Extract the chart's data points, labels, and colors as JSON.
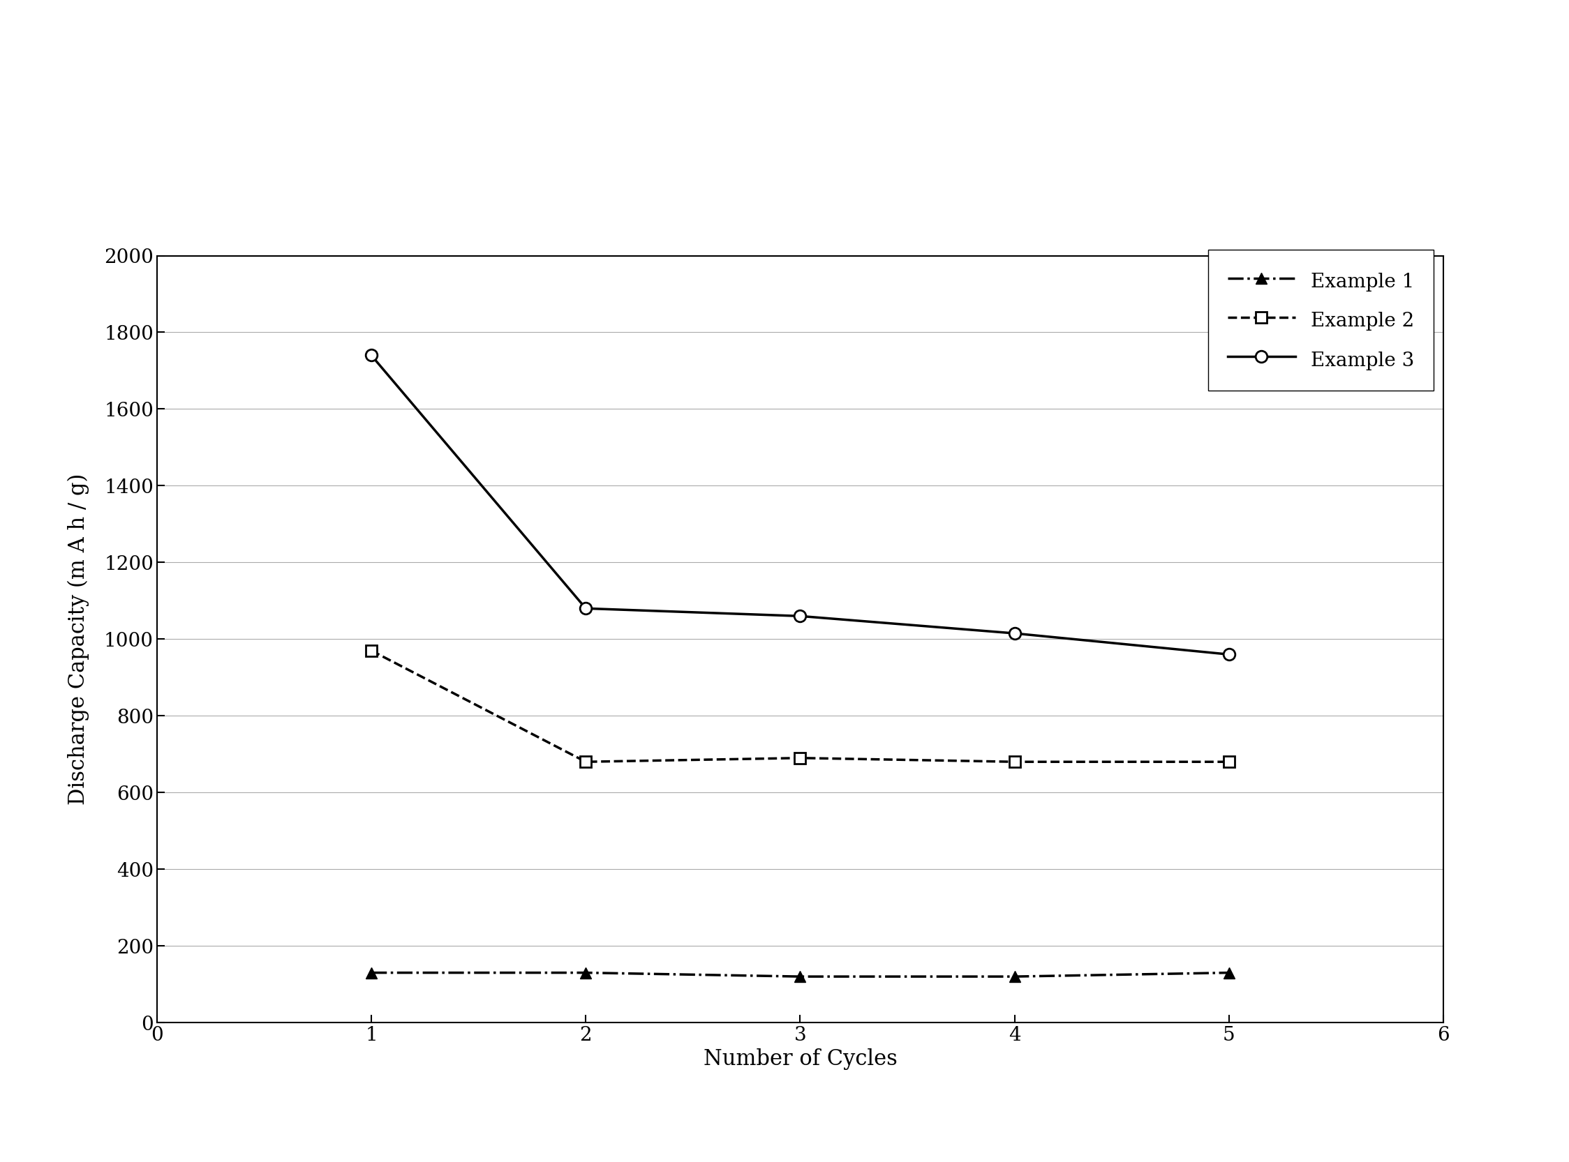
{
  "x": [
    1,
    2,
    3,
    4,
    5
  ],
  "example1": [
    130,
    130,
    120,
    120,
    130
  ],
  "example2": [
    970,
    680,
    690,
    680,
    680
  ],
  "example3": [
    1740,
    1080,
    1060,
    1015,
    960
  ],
  "xlabel": "Number of Cycles",
  "ylabel": "Discharge Capacity (m A h / g)",
  "xlim": [
    0,
    6
  ],
  "ylim": [
    0,
    2000
  ],
  "yticks": [
    0,
    200,
    400,
    600,
    800,
    1000,
    1200,
    1400,
    1600,
    1800,
    2000
  ],
  "xticks": [
    0,
    1,
    2,
    3,
    4,
    5,
    6
  ],
  "legend_labels": [
    "Example 1",
    "Example 2",
    "Example 3"
  ],
  "background_color": "#ffffff",
  "line_color": "#000000",
  "title_fontsize": 20,
  "label_fontsize": 22,
  "tick_fontsize": 20,
  "legend_fontsize": 20
}
